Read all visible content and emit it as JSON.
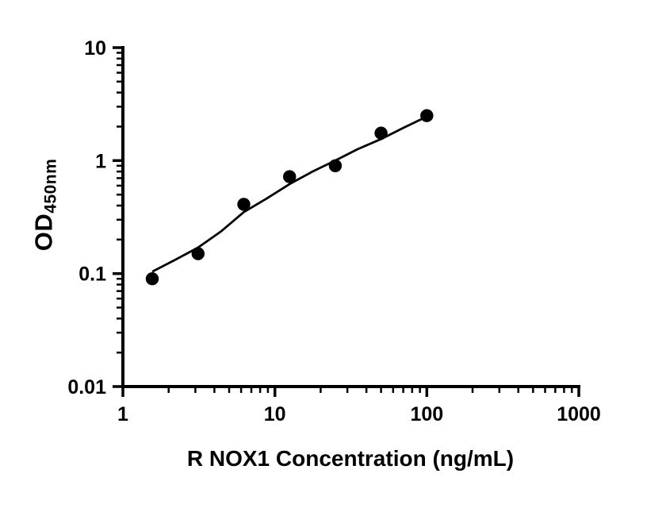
{
  "figure": {
    "background": "#ffffff",
    "axis_color": "#000000",
    "point_color": "#000000",
    "curve_color": "#000000",
    "text_color": "#000000"
  },
  "chart_data": {
    "type": "scatter",
    "title": "",
    "xlabel": "R NOX1 Concentration (ng/mL)",
    "ylabel_main": "OD",
    "ylabel_sub": "450nm",
    "x_scale": "log",
    "y_scale": "log",
    "xlim": [
      1,
      1000
    ],
    "ylim": [
      0.01,
      10
    ],
    "x_ticks": [
      1,
      10,
      100,
      1000
    ],
    "x_tick_labels": [
      "1",
      "10",
      "100",
      "1000"
    ],
    "y_ticks": [
      0.01,
      0.1,
      1,
      10
    ],
    "y_tick_labels": [
      "0.01",
      "0.1",
      "1",
      "10"
    ],
    "grid": false,
    "legend": false,
    "points": {
      "x": [
        1.56,
        3.125,
        6.25,
        12.5,
        25,
        50,
        100
      ],
      "y": [
        0.09,
        0.15,
        0.41,
        0.72,
        0.9,
        1.75,
        2.5
      ]
    },
    "fit_curve": [
      [
        1.56,
        0.104
      ],
      [
        2.2,
        0.132
      ],
      [
        3.125,
        0.17
      ],
      [
        4.4,
        0.235
      ],
      [
        6.25,
        0.35
      ],
      [
        8.8,
        0.46
      ],
      [
        12.5,
        0.62
      ],
      [
        17.7,
        0.8
      ],
      [
        25,
        1.0
      ],
      [
        35,
        1.26
      ],
      [
        50,
        1.55
      ],
      [
        70,
        1.95
      ],
      [
        100,
        2.45
      ]
    ]
  }
}
